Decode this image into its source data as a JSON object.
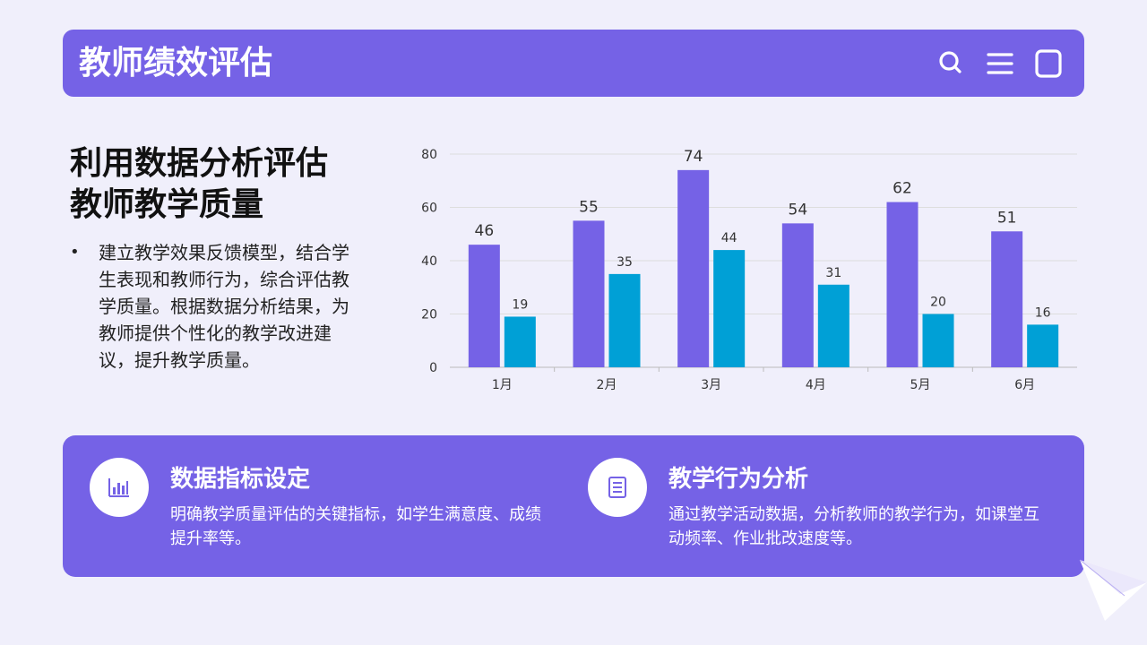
{
  "header": {
    "title": "教师绩效评估",
    "icons": [
      "search-icon",
      "menu-icon",
      "square-icon"
    ]
  },
  "intro": {
    "heading_lines": [
      "利用数据分析评估",
      "教师教学质量"
    ],
    "bullet_marker": "•",
    "bullet_text": "建立教学效果反馈模型，结合学生表现和教师行为，综合评估教学质量。根据数据分析结果，为教师提供个性化的教学改进建议，提升教学质量。"
  },
  "chart_data": {
    "type": "bar",
    "categories": [
      "1月",
      "2月",
      "3月",
      "4月",
      "5月",
      "6月"
    ],
    "series": [
      {
        "values": [
          46,
          55,
          74,
          54,
          62,
          51
        ],
        "color": "#7562e6"
      },
      {
        "values": [
          19,
          35,
          44,
          31,
          20,
          16
        ],
        "color": "#00a0d6"
      }
    ],
    "ylim": [
      0,
      80
    ],
    "yticks": [
      0,
      20,
      40,
      60,
      80
    ],
    "grid": true,
    "title": "",
    "xlabel": "",
    "ylabel": ""
  },
  "features": [
    {
      "icon": "bar-chart-icon",
      "title": "数据指标设定",
      "description": "明确教学质量评估的关键指标，如学生满意度、成绩提升率等。"
    },
    {
      "icon": "document-icon",
      "title": "教学行为分析",
      "description": "通过教学活动数据，分析教师的教学行为，如课堂互动频率、作业批改速度等。"
    }
  ],
  "colors": {
    "primary": "#7562e6",
    "secondary": "#00a0d6",
    "background": "#f0effb"
  }
}
